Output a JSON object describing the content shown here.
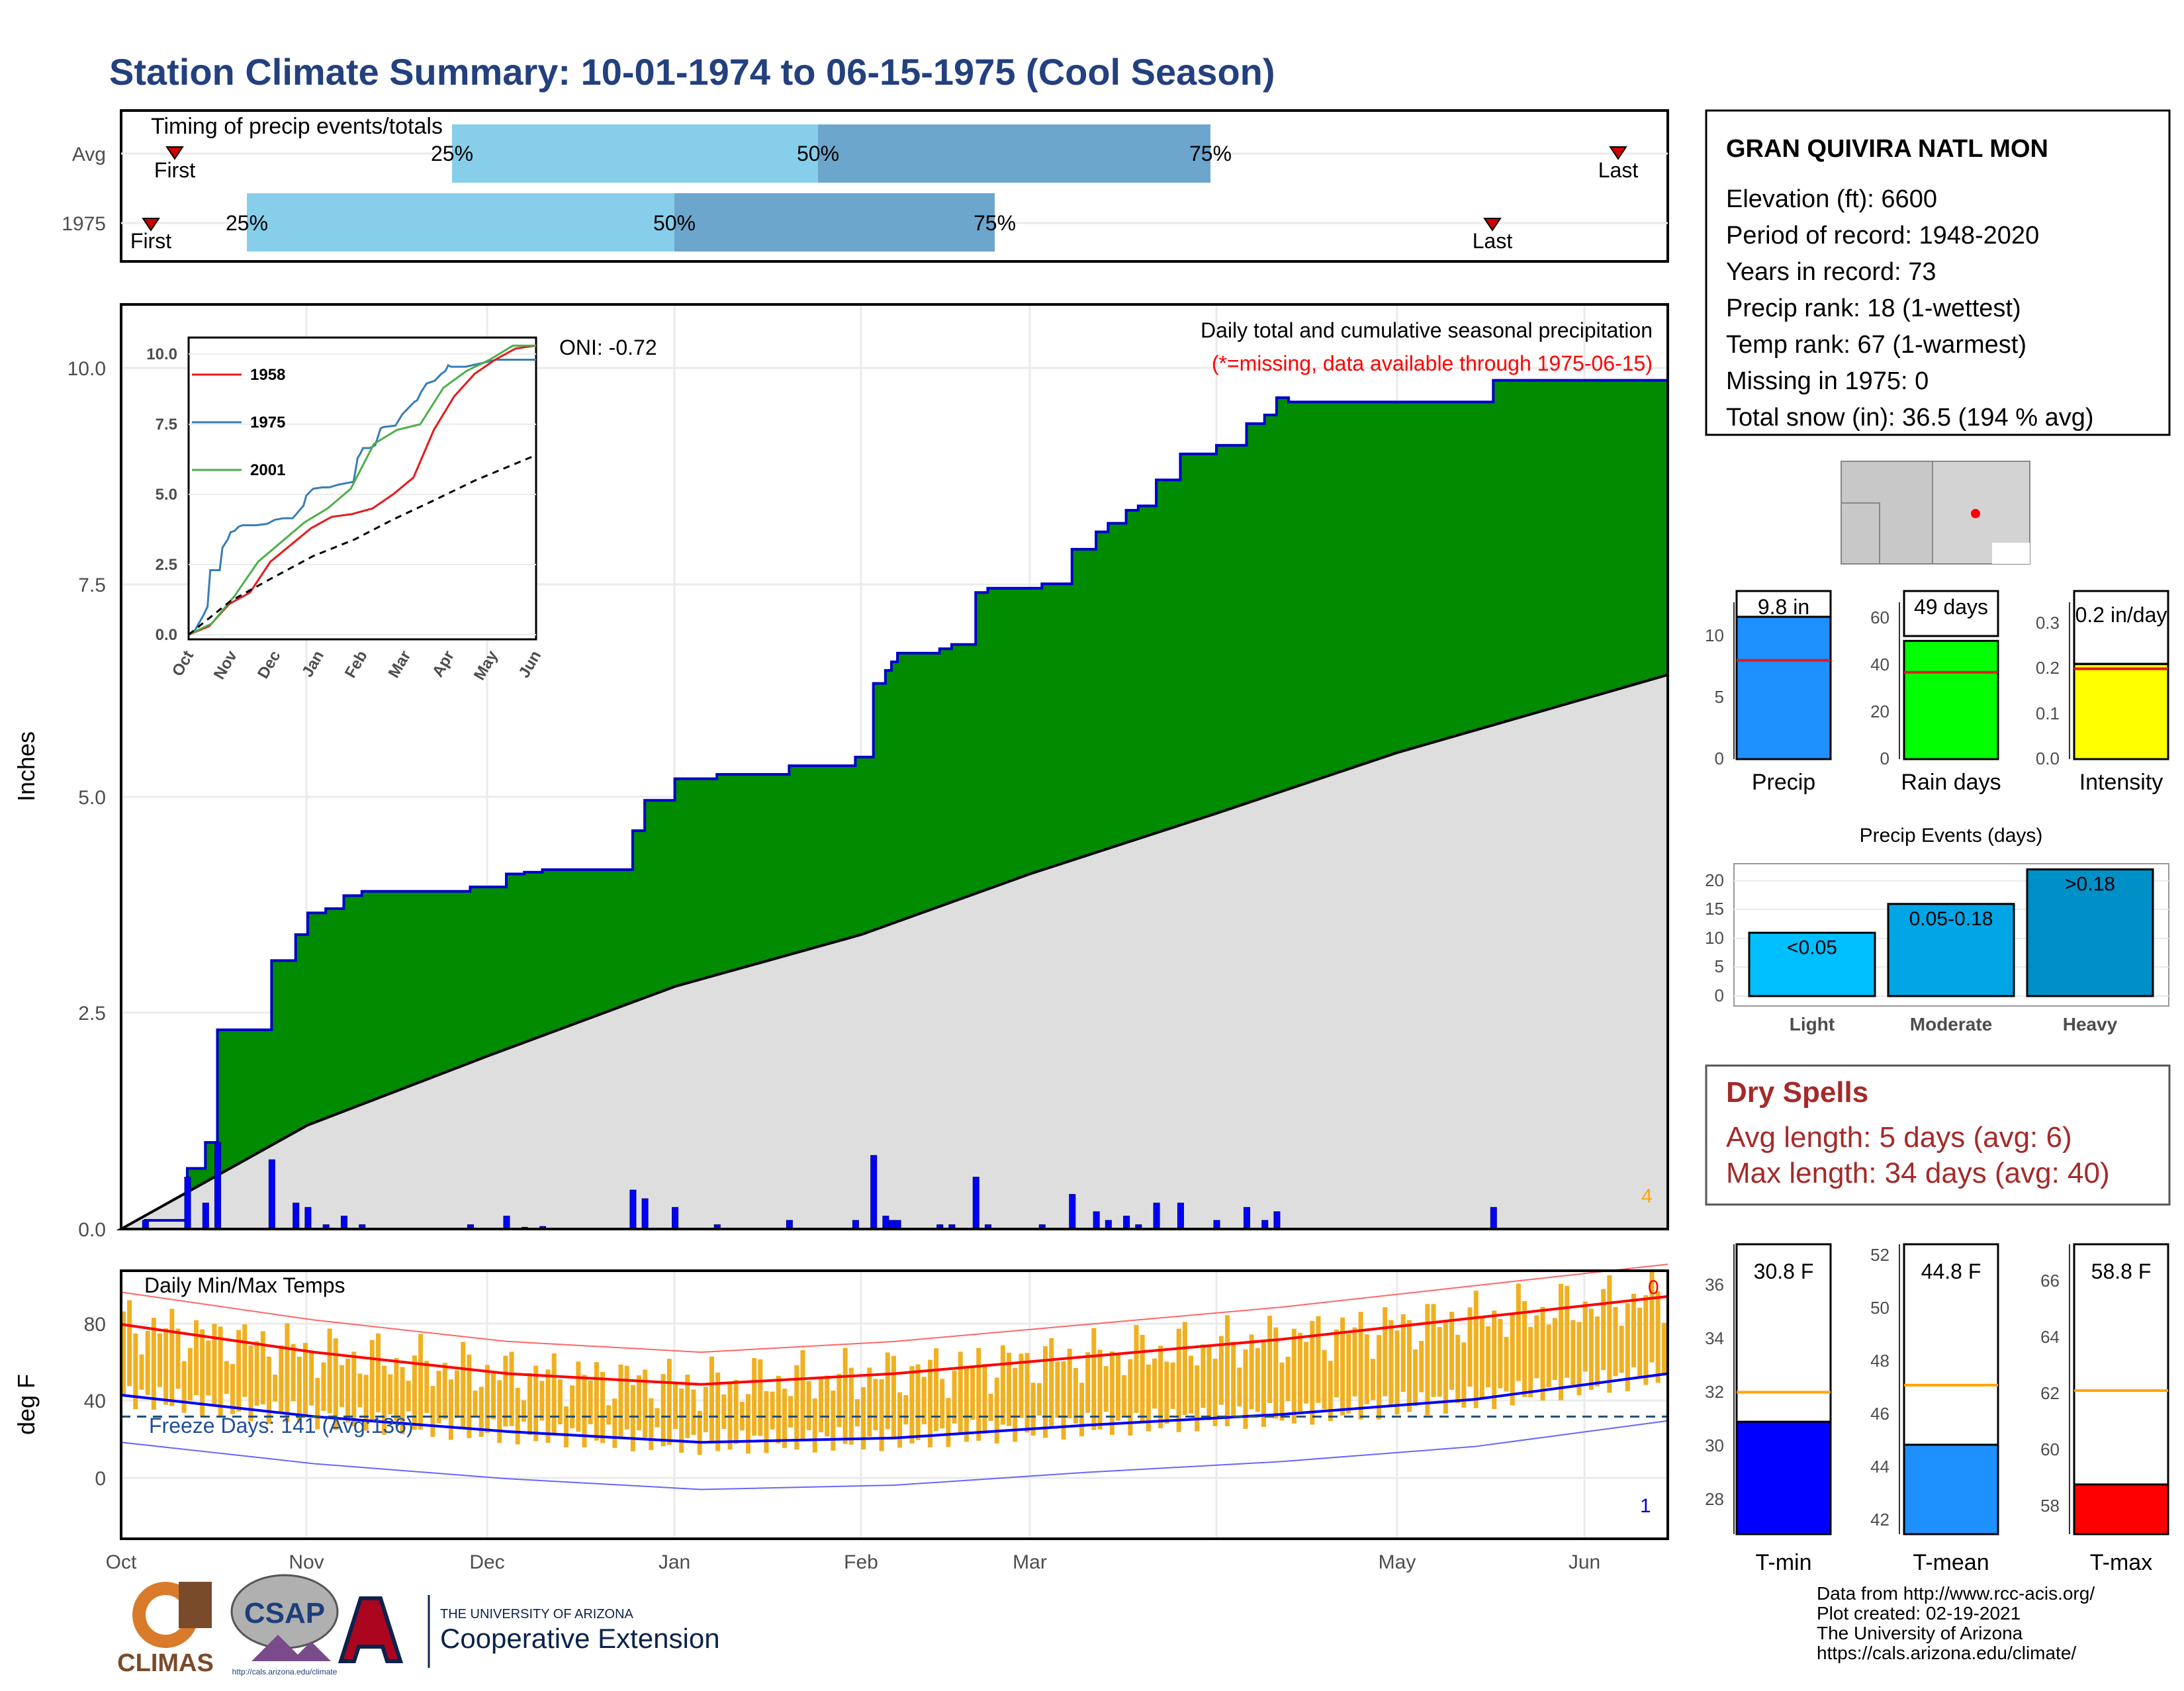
{
  "title": "Station Climate Summary: 10-01-1974 to 06-15-1975 (Cool Season)",
  "months": [
    "Oct",
    "Nov",
    "Dec",
    "Jan",
    "Feb",
    "Mar",
    "Apr",
    "May",
    "Jun"
  ],
  "timing": {
    "label": "Timing of precip events/totals",
    "rows": [
      {
        "name": "Avg",
        "first_label": "First",
        "last_label": "Last",
        "q25": "25%",
        "q50": "50%",
        "q75": "75%"
      },
      {
        "name": "1975",
        "first_label": "First",
        "last_label": "Last",
        "q25": "25%",
        "q50": "50%",
        "q75": "75%"
      }
    ]
  },
  "station": {
    "name": "GRAN QUIVIRA NATL MON",
    "lines": [
      "Elevation (ft): 6600",
      "Period of record: 1948-2020",
      "Years in record: 73",
      "Precip rank: 18 (1-wettest)",
      "Temp rank: 67 (1-warmest)",
      "Missing in 1975: 0",
      "Total snow (in): 36.5 (194 % avg)"
    ]
  },
  "precip_panel": {
    "ylabel": "Inches",
    "yticks": [
      "0.0",
      "2.5",
      "5.0",
      "7.5",
      "10.0"
    ],
    "title": "Daily total and cumulative seasonal precipitation",
    "missing_note": "(*=missing, data available through 1975-06-15)",
    "oni": "ONI: -0.72",
    "corner_count": "4",
    "inset": {
      "yticks": [
        "0.0",
        "2.5",
        "5.0",
        "7.5",
        "10.0"
      ],
      "xticks": [
        "Oct",
        "Nov",
        "Dec",
        "Jan",
        "Feb",
        "Mar",
        "Apr",
        "May",
        "Jun"
      ],
      "legend": [
        {
          "name": "1958",
          "color": "#e41a1c"
        },
        {
          "name": "1975",
          "color": "#377eb8"
        },
        {
          "name": "2001",
          "color": "#4daf4a"
        }
      ]
    }
  },
  "temp_panel": {
    "ylabel": "deg F",
    "yticks": [
      "0",
      "40",
      "80"
    ],
    "title": "Daily Min/Max Temps",
    "freeze": "Freeze Days: 141 (Avg:136)",
    "count_max": "0",
    "count_min": "1"
  },
  "mini_bars": [
    {
      "label": "Precip",
      "value_text": "9.8 in",
      "color": "#1e90ff",
      "yticks": [
        "0",
        "5",
        "10"
      ]
    },
    {
      "label": "Rain days",
      "value_text": "49 days",
      "color": "#00ff00",
      "yticks": [
        "0",
        "20",
        "40",
        "60"
      ]
    },
    {
      "label": "Intensity",
      "value_text": "0.2 in/day",
      "color": "#ffff00",
      "yticks": [
        "0.0",
        "0.1",
        "0.2",
        "0.3"
      ]
    }
  ],
  "events": {
    "title": "Precip Events (days)",
    "yticks": [
      "0",
      "5",
      "10",
      "15",
      "20"
    ],
    "bars": [
      {
        "cat": "Light",
        "label": "<0.05",
        "color": "#00bfff"
      },
      {
        "cat": "Moderate",
        "label": "0.05-0.18",
        "color": "#00a5e6"
      },
      {
        "cat": "Heavy",
        "label": ">0.18",
        "color": "#0090c8"
      }
    ]
  },
  "dry_spells": {
    "title": "Dry Spells",
    "avg": "Avg length: 5 days (avg: 6)",
    "max": "Max length: 34 days (avg: 40)"
  },
  "temp_bars": [
    {
      "label": "T-min",
      "value_text": "30.8 F",
      "color": "#0000ff",
      "yticks": [
        "28",
        "30",
        "32",
        "34",
        "36"
      ]
    },
    {
      "label": "T-mean",
      "value_text": "44.8 F",
      "color": "#1e90ff",
      "yticks": [
        "42",
        "44",
        "46",
        "48",
        "50",
        "52"
      ]
    },
    {
      "label": "T-max",
      "value_text": "58.8 F",
      "color": "#ff0000",
      "yticks": [
        "58",
        "60",
        "62",
        "64",
        "66"
      ]
    }
  ],
  "footer": [
    "Data from http://www.rcc-acis.org/",
    "Plot created: 02-19-2021",
    "The University of Arizona",
    "https://cals.arizona.edu/climate/"
  ],
  "logos": {
    "climas": "CLIMAS",
    "csap": "CSAP",
    "csap_url": "http://cals.arizona.edu/climate",
    "ua_top": "THE UNIVERSITY OF ARIZONA",
    "ua_bottom": "Cooperative Extension"
  },
  "chart_data": [
    {
      "type": "area",
      "name": "cumulative_precip",
      "ylim": [
        0,
        10.6
      ],
      "x_range": [
        "1974-10-01",
        "1975-06-15"
      ],
      "series": [
        {
          "name": "1975 cumulative",
          "x": [
            "1974-10-01",
            "1974-10-05",
            "1974-10-12",
            "1974-10-15",
            "1974-10-17",
            "1974-10-24",
            "1974-10-26",
            "1974-10-30",
            "1974-11-01",
            "1974-11-04",
            "1974-11-07",
            "1974-11-10",
            "1974-11-14",
            "1974-11-20",
            "1974-11-28",
            "1974-12-04",
            "1974-12-07",
            "1974-12-10",
            "1974-12-17",
            "1974-12-25",
            "1974-12-27",
            "1975-01-01",
            "1975-01-08",
            "1975-01-13",
            "1975-01-20",
            "1975-01-31",
            "1975-02-03",
            "1975-02-05",
            "1975-02-06",
            "1975-02-07",
            "1975-02-10",
            "1975-02-12",
            "1975-02-14",
            "1975-02-16",
            "1975-02-20",
            "1975-02-22",
            "1975-03-03",
            "1975-03-08",
            "1975-03-12",
            "1975-03-14",
            "1975-03-17",
            "1975-03-19",
            "1975-03-22",
            "1975-03-26",
            "1975-04-01",
            "1975-04-06",
            "1975-04-09",
            "1975-04-11",
            "1975-04-13",
            "1975-04-24",
            "1975-05-17",
            "1975-06-15"
          ],
          "values": [
            0,
            0.1,
            0.7,
            1.0,
            2.3,
            2.3,
            3.1,
            3.4,
            3.65,
            3.7,
            3.85,
            3.9,
            3.9,
            3.9,
            3.95,
            4.1,
            4.12,
            4.15,
            4.15,
            4.6,
            4.95,
            5.2,
            5.25,
            5.25,
            5.35,
            5.45,
            6.3,
            6.45,
            6.55,
            6.65,
            6.65,
            6.65,
            6.7,
            6.75,
            7.35,
            7.4,
            7.45,
            7.85,
            8.05,
            8.15,
            8.3,
            8.35,
            8.65,
            8.95,
            9.05,
            9.3,
            9.4,
            9.6,
            9.55,
            9.55,
            9.8,
            9.8
          ]
        },
        {
          "name": "Average cumulative",
          "x": [
            "1974-10-01",
            "1974-11-01",
            "1974-12-01",
            "1975-01-01",
            "1975-02-01",
            "1975-03-01",
            "1975-04-01",
            "1975-05-01",
            "1975-06-15"
          ],
          "values": [
            0,
            1.2,
            2.0,
            2.8,
            3.4,
            4.1,
            4.8,
            5.5,
            6.4
          ]
        }
      ]
    },
    {
      "type": "line",
      "name": "daily_temps",
      "ylim": [
        -25,
        100
      ],
      "series": [
        {
          "name": "Avg max",
          "x": [
            "Oct",
            "Nov",
            "Dec",
            "Jan",
            "Feb",
            "Mar",
            "Apr",
            "May",
            "Jun"
          ],
          "values": [
            75,
            62,
            52,
            47,
            52,
            60,
            68,
            78,
            88
          ]
        },
        {
          "name": "Avg min",
          "x": [
            "Oct",
            "Nov",
            "Dec",
            "Jan",
            "Feb",
            "Mar",
            "Apr",
            "May",
            "Jun"
          ],
          "values": [
            42,
            32,
            25,
            20,
            22,
            28,
            33,
            40,
            52
          ]
        }
      ]
    },
    {
      "type": "bar",
      "name": "season_totals",
      "categories": [
        "Precip",
        "Rain days",
        "Intensity"
      ],
      "values": [
        9.8,
        49,
        0.2
      ],
      "averages": [
        6.8,
        36,
        0.19
      ]
    },
    {
      "type": "bar",
      "name": "precip_events",
      "categories": [
        "Light",
        "Moderate",
        "Heavy"
      ],
      "values": [
        11,
        16,
        22
      ],
      "ylim": [
        0,
        22.5
      ]
    },
    {
      "type": "bar",
      "name": "temp_means",
      "categories": [
        "T-min",
        "T-mean",
        "T-max"
      ],
      "values": [
        30.8,
        44.8,
        58.8
      ],
      "averages": [
        31.8,
        47.0,
        62.2
      ]
    }
  ]
}
